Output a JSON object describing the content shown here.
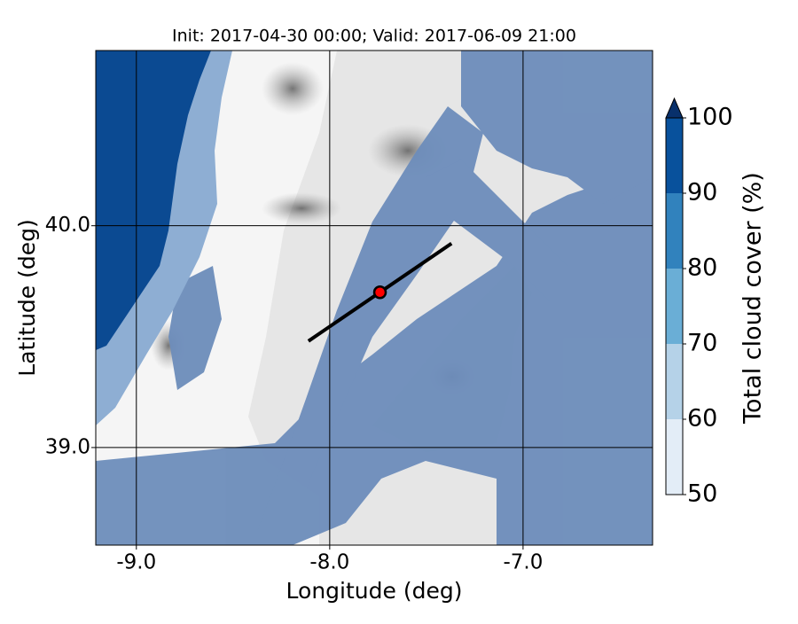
{
  "title": "Init: 2017-04-30 00:00; Valid: 2017-06-09 21:00",
  "map": {
    "xlabel": "Longitude (deg)",
    "ylabel": "Latitude (deg)",
    "xlim": [
      -9.21,
      -6.33
    ],
    "ylim": [
      38.56,
      40.79
    ],
    "xticks": [
      {
        "value": -9,
        "label": "-9.0"
      },
      {
        "value": -8,
        "label": "-8.0"
      },
      {
        "value": -7,
        "label": "-7.0"
      }
    ],
    "yticks": [
      {
        "value": 39,
        "label": "39.0"
      },
      {
        "value": 40,
        "label": "40.0"
      }
    ],
    "transect": {
      "lon": [
        -8.11,
        -7.37
      ],
      "lat": [
        39.48,
        39.92
      ],
      "color": "#000000"
    },
    "point": {
      "lon": -7.74,
      "lat": 39.7,
      "color": "#ff0000"
    }
  },
  "colorbar": {
    "label": "Total cloud cover (%)",
    "ticks": [
      50,
      60,
      70,
      80,
      90,
      100
    ],
    "colors": [
      "#e3edf7",
      "#b5d2e8",
      "#6aaed6",
      "#3182bd",
      "#08519c"
    ],
    "extend_color": "#08306b"
  }
}
